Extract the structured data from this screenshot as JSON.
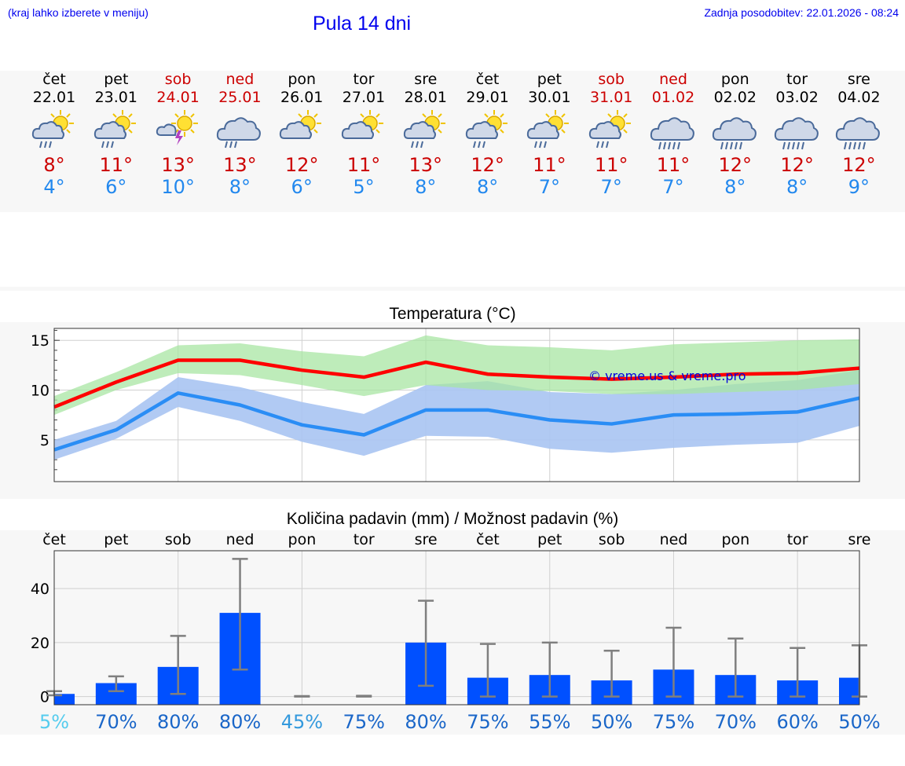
{
  "header": {
    "hint": "(kraj lahko izberete v meniju)",
    "title": "Pula 14 dni",
    "updated": "Zadnja posodobitev: 22.01.2026 - 08:24"
  },
  "days": [
    {
      "name": "čet",
      "date": "22.01",
      "weekend": false,
      "icon": "sun-cloud-rain-icon",
      "max": "8°",
      "min": "4°"
    },
    {
      "name": "pet",
      "date": "23.01",
      "weekend": false,
      "icon": "sun-cloud-rain-icon",
      "max": "11°",
      "min": "6°"
    },
    {
      "name": "sob",
      "date": "24.01",
      "weekend": true,
      "icon": "sun-thunderstorm-icon",
      "max": "13°",
      "min": "10°"
    },
    {
      "name": "ned",
      "date": "25.01",
      "weekend": true,
      "icon": "cloud-rain-icon",
      "max": "13°",
      "min": "8°"
    },
    {
      "name": "pon",
      "date": "26.01",
      "weekend": false,
      "icon": "sun-cloud-icon",
      "max": "12°",
      "min": "6°"
    },
    {
      "name": "tor",
      "date": "27.01",
      "weekend": false,
      "icon": "sun-cloud-icon",
      "max": "11°",
      "min": "5°"
    },
    {
      "name": "sre",
      "date": "28.01",
      "weekend": false,
      "icon": "sun-cloud-rain-icon",
      "max": "13°",
      "min": "8°"
    },
    {
      "name": "čet",
      "date": "29.01",
      "weekend": false,
      "icon": "sun-cloud-rain-icon",
      "max": "12°",
      "min": "8°"
    },
    {
      "name": "pet",
      "date": "30.01",
      "weekend": false,
      "icon": "sun-cloud-rain-icon",
      "max": "11°",
      "min": "7°"
    },
    {
      "name": "sob",
      "date": "31.01",
      "weekend": true,
      "icon": "sun-cloud-rain-icon",
      "max": "11°",
      "min": "7°"
    },
    {
      "name": "ned",
      "date": "01.02",
      "weekend": true,
      "icon": "cloud-heavy-rain-icon",
      "max": "11°",
      "min": "7°"
    },
    {
      "name": "pon",
      "date": "02.02",
      "weekend": false,
      "icon": "cloud-heavy-rain-icon",
      "max": "12°",
      "min": "8°"
    },
    {
      "name": "tor",
      "date": "03.02",
      "weekend": false,
      "icon": "cloud-heavy-rain-icon",
      "max": "12°",
      "min": "8°"
    },
    {
      "name": "sre",
      "date": "04.02",
      "weekend": false,
      "icon": "cloud-heavy-rain-icon",
      "max": "12°",
      "min": "9°"
    }
  ],
  "colors": {
    "max_line": "#ff0000",
    "max_band": "#a8e6a3",
    "min_line": "#2a8df5",
    "min_band": "#a9c4f2",
    "bar": "#0050ff",
    "whisker": "#7f7f7f",
    "prob_low": "#55ccee",
    "prob_mid": "#3399dd",
    "prob_high": "#1a66c8"
  },
  "chart_data": [
    {
      "type": "line",
      "title": "Temperatura (°C)",
      "watermark": "© vreme.us & vreme.pro",
      "x": [
        0,
        1,
        2,
        3,
        4,
        5,
        6,
        7,
        8,
        9,
        10,
        11,
        12,
        13
      ],
      "ylim": [
        0.8,
        16.2
      ],
      "yticks": [
        5,
        10,
        15
      ],
      "series": [
        {
          "name": "max",
          "values": [
            8.3,
            10.8,
            13.0,
            13.0,
            12.0,
            11.3,
            12.8,
            11.6,
            11.3,
            11.1,
            11.3,
            11.6,
            11.7,
            12.2
          ],
          "band_low": [
            7.5,
            10.0,
            11.7,
            11.5,
            10.5,
            9.4,
            10.5,
            10.0,
            9.9,
            9.6,
            9.6,
            9.8,
            10.0,
            10.6
          ],
          "band_high": [
            9.4,
            11.8,
            14.5,
            14.7,
            13.9,
            13.4,
            15.5,
            14.5,
            14.3,
            14.0,
            14.6,
            14.8,
            15.0,
            15.1
          ]
        },
        {
          "name": "min",
          "values": [
            4.0,
            6.0,
            9.7,
            8.5,
            6.5,
            5.5,
            8.0,
            8.0,
            7.0,
            6.6,
            7.5,
            7.6,
            7.8,
            9.2
          ],
          "band_low": [
            3.0,
            5.1,
            8.3,
            6.9,
            4.8,
            3.4,
            5.4,
            5.3,
            4.1,
            3.7,
            4.2,
            4.5,
            4.7,
            6.4
          ],
          "band_high": [
            5.0,
            6.9,
            11.3,
            10.3,
            8.8,
            7.6,
            10.5,
            10.9,
            9.8,
            9.6,
            10.0,
            10.6,
            11.0,
            12.0
          ]
        }
      ]
    },
    {
      "type": "bar",
      "title": "Količina padavin (mm) / Možnost padavin (%)",
      "categories": [
        "čet",
        "pet",
        "sob",
        "ned",
        "pon",
        "tor",
        "sre",
        "čet",
        "pet",
        "sob",
        "ned",
        "pon",
        "tor",
        "sre"
      ],
      "values": [
        1.0,
        5.0,
        11.0,
        31.0,
        0,
        0,
        20.0,
        7.0,
        8.0,
        6.0,
        10.0,
        8.0,
        6.0,
        7.0
      ],
      "err_low": [
        0.5,
        2.0,
        1.0,
        10.0,
        0,
        0,
        4.0,
        0,
        0,
        0,
        0,
        0,
        0,
        0
      ],
      "err_high": [
        2.0,
        7.5,
        22.5,
        51.0,
        0.2,
        0.3,
        35.5,
        19.5,
        20.0,
        17.0,
        25.5,
        21.5,
        18.0,
        19.0
      ],
      "probability": [
        "5%",
        "70%",
        "80%",
        "80%",
        "45%",
        "75%",
        "80%",
        "75%",
        "55%",
        "50%",
        "75%",
        "70%",
        "60%",
        "50%"
      ],
      "ylim": [
        -3,
        54
      ],
      "yticks": [
        0,
        20,
        40
      ]
    }
  ]
}
